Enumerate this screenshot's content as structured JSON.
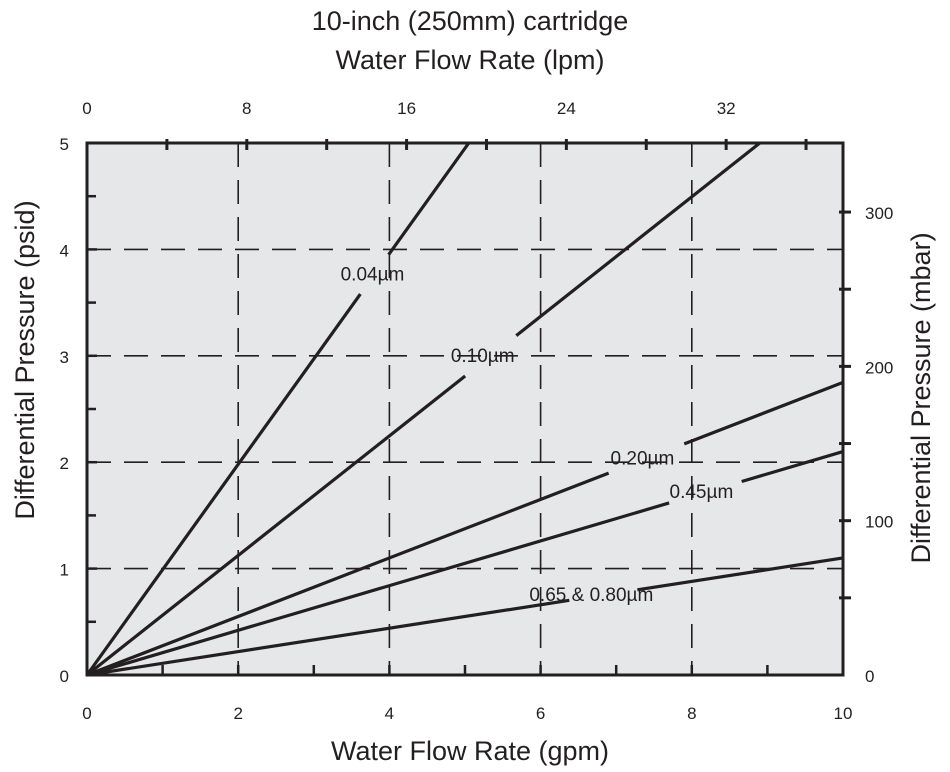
{
  "chart_data": {
    "type": "line",
    "title": "10-inch (250mm) cartridge",
    "xlabel": "Water Flow Rate (gpm)",
    "x2label": "Water Flow Rate (lpm)",
    "ylabel": "Differential Pressure (psid)",
    "y2label": "Differential Pressure (mbar)",
    "xlim": [
      0,
      10
    ],
    "ylim": [
      0,
      5
    ],
    "x_ticks": [
      0,
      2,
      4,
      6,
      8,
      10
    ],
    "y_ticks": [
      0,
      1,
      2,
      3,
      4,
      5
    ],
    "x2_ticks": [
      0,
      8,
      16,
      24,
      32
    ],
    "y2_ticks": [
      0,
      100,
      200,
      300
    ],
    "lpm_per_gpm": 3.785,
    "mbar_per_psid": 68.95,
    "grid": true,
    "colors": {
      "background": "#e6e7e8",
      "line": "#231f20"
    },
    "series": [
      {
        "name": "0.04µm",
        "x": [
          0,
          5.05
        ],
        "y": [
          0,
          5.0
        ]
      },
      {
        "name": "0.10µm",
        "x": [
          0,
          8.9
        ],
        "y": [
          0,
          5.0
        ]
      },
      {
        "name": "0.20µm",
        "x": [
          0,
          10
        ],
        "y": [
          0,
          2.75
        ]
      },
      {
        "name": "0.45µm",
        "x": [
          0,
          10
        ],
        "y": [
          0,
          2.1
        ]
      },
      {
        "name": "0.65 & 0.80µm",
        "x": [
          0,
          10
        ],
        "y": [
          0,
          1.1
        ]
      }
    ]
  }
}
